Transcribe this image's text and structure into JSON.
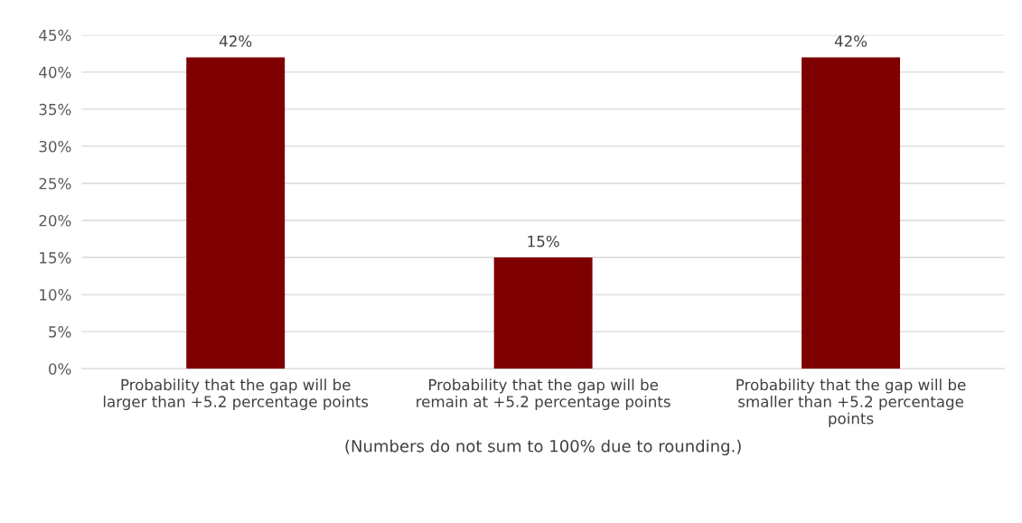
{
  "chart_data": {
    "type": "bar",
    "categories": [
      "Probability that the gap will be\nlarger than +5.2 percentage points",
      "Probability that the gap will be\nremain at +5.2 percentage points",
      "Probability that the gap will be\nsmaller than +5.2 percentage\npoints"
    ],
    "values": [
      42,
      15,
      42
    ],
    "value_labels": [
      "42%",
      "15%",
      "42%"
    ],
    "color": "#7f0000",
    "xlabel": "(Numbers do not sum to 100% due to rounding.)",
    "ylim": [
      0,
      45
    ],
    "yticks": [
      {
        "value": 0,
        "label": "0%"
      },
      {
        "value": 5,
        "label": "5%"
      },
      {
        "value": 10,
        "label": "10%"
      },
      {
        "value": 15,
        "label": "15%"
      },
      {
        "value": 20,
        "label": "20%"
      },
      {
        "value": 25,
        "label": "25%"
      },
      {
        "value": 30,
        "label": "30%"
      },
      {
        "value": 35,
        "label": "35%"
      },
      {
        "value": 40,
        "label": "40%"
      },
      {
        "value": 45,
        "label": "45%"
      }
    ],
    "grid": "y",
    "legend": false
  }
}
